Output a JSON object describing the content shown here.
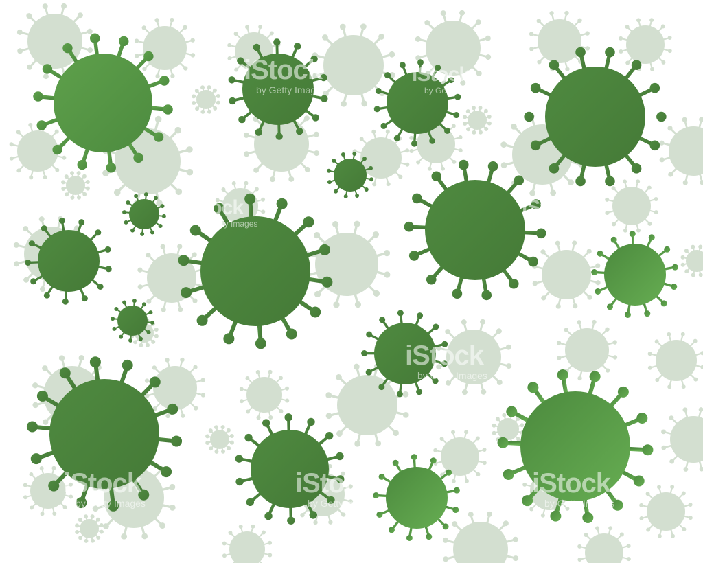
{
  "image": {
    "description_kind": "stock illustration of green virus particles pattern",
    "colors": {
      "background": "#ffffff",
      "virus_dark": "#4a7f3c",
      "virus_mid": "#5a9b48",
      "virus_light_center": "#66ad52",
      "virus_faded": "#d3dfd0"
    }
  },
  "watermark": {
    "brand": "iStock",
    "credit": "by Getty Images"
  }
}
